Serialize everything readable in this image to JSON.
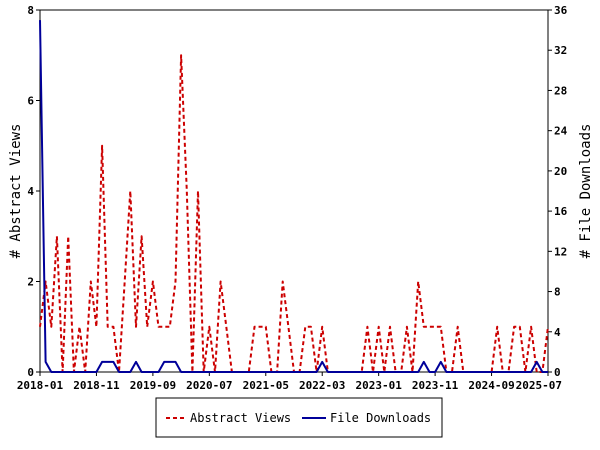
{
  "chart_data": {
    "type": "line",
    "title": "",
    "xlabel": "",
    "ylabel": "# Abstract Views",
    "y2label": "# File Downloads",
    "ylim": [
      0,
      8
    ],
    "y2lim": [
      0,
      36
    ],
    "x_range": [
      "2018-01",
      "2025-07"
    ],
    "y_ticks": [
      0,
      2,
      4,
      6,
      8
    ],
    "y2_ticks": [
      0,
      4,
      8,
      12,
      16,
      20,
      24,
      28,
      32,
      36
    ],
    "x_ticks": [
      "2018-01",
      "2018-11",
      "2019-09",
      "2020-07",
      "2021-05",
      "2022-03",
      "2023-01",
      "2023-11",
      "2024-09",
      "2025-07"
    ],
    "grid": false,
    "legend_position": "bottom",
    "series": [
      {
        "name": "Abstract Views",
        "axis": "left",
        "color": "#cc0000",
        "style": "dashed",
        "x": [
          "2018-01",
          "2018-02",
          "2018-03",
          "2018-04",
          "2018-05",
          "2018-06",
          "2018-07",
          "2018-08",
          "2018-09",
          "2018-10",
          "2018-11",
          "2018-12",
          "2019-01",
          "2019-02",
          "2019-03",
          "2019-04",
          "2019-05",
          "2019-06",
          "2019-07",
          "2019-08",
          "2019-09",
          "2019-10",
          "2019-11",
          "2019-12",
          "2020-01",
          "2020-02",
          "2020-03",
          "2020-04",
          "2020-05",
          "2020-06",
          "2020-07",
          "2020-08",
          "2020-09",
          "2020-10",
          "2020-11",
          "2020-12",
          "2021-01",
          "2021-02",
          "2021-03",
          "2021-04",
          "2021-05",
          "2021-06",
          "2021-07",
          "2021-08",
          "2021-09",
          "2021-10",
          "2021-11",
          "2021-12",
          "2022-01",
          "2022-02",
          "2022-03",
          "2022-04",
          "2022-05",
          "2022-06",
          "2022-07",
          "2022-08",
          "2022-09",
          "2022-10",
          "2022-11",
          "2022-12",
          "2023-01",
          "2023-02",
          "2023-03",
          "2023-04",
          "2023-05",
          "2023-06",
          "2023-07",
          "2023-08",
          "2023-09",
          "2023-10",
          "2023-11",
          "2023-12",
          "2024-01",
          "2024-02",
          "2024-03",
          "2024-04",
          "2024-05",
          "2024-06",
          "2024-07",
          "2024-08",
          "2024-09",
          "2024-10",
          "2024-11",
          "2024-12",
          "2025-01",
          "2025-02",
          "2025-03",
          "2025-04",
          "2025-05",
          "2025-06",
          "2025-07"
        ],
        "values": [
          1,
          2,
          1,
          3,
          0,
          3,
          0,
          1,
          0,
          2,
          1,
          5,
          1,
          1,
          0,
          2,
          4,
          1,
          3,
          1,
          2,
          1,
          1,
          1,
          2,
          7,
          4,
          0,
          4,
          0,
          1,
          0,
          2,
          1,
          0,
          0,
          0,
          0,
          1,
          1,
          1,
          0,
          0,
          2,
          1,
          0,
          0,
          1,
          1,
          0,
          1,
          0,
          0,
          0,
          0,
          0,
          0,
          0,
          1,
          0,
          1,
          0,
          1,
          0,
          0,
          1,
          0,
          2,
          1,
          1,
          1,
          1,
          0,
          0,
          1,
          0,
          0,
          0,
          0,
          0,
          0,
          1,
          0,
          0,
          1,
          1,
          0,
          1,
          0,
          0,
          1
        ]
      },
      {
        "name": "File Downloads",
        "axis": "right",
        "color": "#000099",
        "style": "solid",
        "x": [
          "2018-01",
          "2018-02",
          "2018-03",
          "2018-04",
          "2018-05",
          "2018-06",
          "2018-07",
          "2018-08",
          "2018-09",
          "2018-10",
          "2018-11",
          "2018-12",
          "2019-01",
          "2019-02",
          "2019-03",
          "2019-04",
          "2019-05",
          "2019-06",
          "2019-07",
          "2019-08",
          "2019-09",
          "2019-10",
          "2019-11",
          "2019-12",
          "2020-01",
          "2020-02",
          "2020-03",
          "2020-04",
          "2020-05",
          "2020-06",
          "2020-07",
          "2020-08",
          "2020-09",
          "2020-10",
          "2020-11",
          "2020-12",
          "2021-01",
          "2021-02",
          "2021-03",
          "2021-04",
          "2021-05",
          "2021-06",
          "2021-07",
          "2021-08",
          "2021-09",
          "2021-10",
          "2021-11",
          "2021-12",
          "2022-01",
          "2022-02",
          "2022-03",
          "2022-04",
          "2022-05",
          "2022-06",
          "2022-07",
          "2022-08",
          "2022-09",
          "2022-10",
          "2022-11",
          "2022-12",
          "2023-01",
          "2023-02",
          "2023-03",
          "2023-04",
          "2023-05",
          "2023-06",
          "2023-07",
          "2023-08",
          "2023-09",
          "2023-10",
          "2023-11",
          "2023-12",
          "2024-01",
          "2024-02",
          "2024-03",
          "2024-04",
          "2024-05",
          "2024-06",
          "2024-07",
          "2024-08",
          "2024-09",
          "2024-10",
          "2024-11",
          "2024-12",
          "2025-01",
          "2025-02",
          "2025-03",
          "2025-04",
          "2025-05",
          "2025-06",
          "2025-07"
        ],
        "values": [
          35,
          1,
          0,
          0,
          0,
          0,
          0,
          0,
          0,
          0,
          0,
          1,
          1,
          1,
          0,
          0,
          0,
          1,
          0,
          0,
          0,
          0,
          1,
          1,
          1,
          0,
          0,
          0,
          0,
          0,
          0,
          0,
          0,
          0,
          0,
          0,
          0,
          0,
          0,
          0,
          0,
          0,
          0,
          0,
          0,
          0,
          0,
          0,
          0,
          0,
          1,
          0,
          0,
          0,
          0,
          0,
          0,
          0,
          0,
          0,
          0,
          0,
          0,
          0,
          0,
          0,
          0,
          0,
          1,
          0,
          0,
          1,
          0,
          0,
          0,
          0,
          0,
          0,
          0,
          0,
          0,
          0,
          0,
          0,
          0,
          0,
          0,
          0,
          1,
          0,
          0
        ]
      }
    ]
  }
}
